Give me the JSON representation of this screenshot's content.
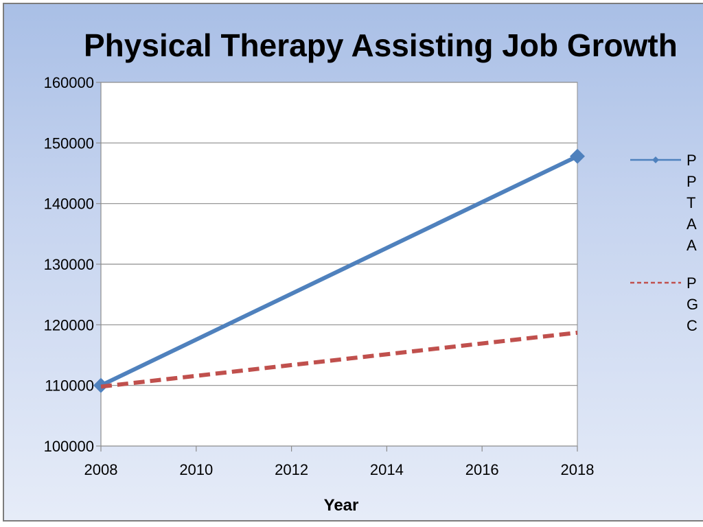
{
  "chart_data": {
    "type": "line",
    "title": "Physical Therapy Assisting Job Growth",
    "xlabel": "Year",
    "ylabel": "",
    "x": [
      2008,
      2018
    ],
    "xticks": [
      "2008",
      "2010",
      "2012",
      "2014",
      "2016",
      "2018"
    ],
    "yticks": [
      "100000",
      "110000",
      "120000",
      "130000",
      "140000",
      "150000",
      "160000"
    ],
    "xlim": [
      2008,
      2018
    ],
    "ylim": [
      100000,
      160000
    ],
    "grid": "horizontal",
    "legend_position": "right",
    "series": [
      {
        "legend_lines": [
          "P",
          "P",
          "T",
          "A",
          "A"
        ],
        "color": "#4f81bd",
        "style": "solid",
        "marker": "diamond",
        "points": [
          [
            2008,
            110000
          ],
          [
            2018,
            147800
          ]
        ]
      },
      {
        "legend_lines": [
          "P",
          "G",
          "C"
        ],
        "color": "#c0504d",
        "style": "dashed",
        "marker": "none",
        "points": [
          [
            2008,
            109800
          ],
          [
            2018,
            118700
          ]
        ]
      }
    ]
  }
}
